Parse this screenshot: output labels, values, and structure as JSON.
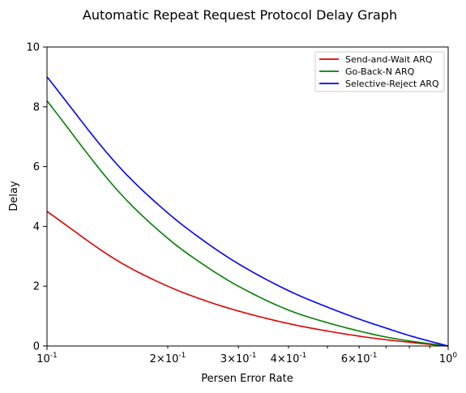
{
  "chart_data": {
    "type": "line",
    "title": "Automatic Repeat Request Protocol Delay Graph",
    "xlabel": "Persen Error Rate",
    "ylabel": "Delay",
    "xscale": "log",
    "xlim": [
      0.1,
      1.0
    ],
    "ylim": [
      0,
      10
    ],
    "grid": false,
    "legend_position": "top-right",
    "x_ticks": [
      {
        "value": 0.1,
        "label": "10^-1"
      },
      {
        "value": 0.2,
        "label": "2×10^-1"
      },
      {
        "value": 0.3,
        "label": "3×10^-1"
      },
      {
        "value": 0.4,
        "label": "4×10^-1"
      },
      {
        "value": 0.6,
        "label": "6×10^-1"
      },
      {
        "value": 1.0,
        "label": "10^0"
      }
    ],
    "y_ticks": [
      0,
      2,
      4,
      6,
      8,
      10
    ],
    "x": [
      0.1,
      0.15,
      0.2,
      0.25,
      0.3,
      0.4,
      0.5,
      0.6,
      0.7,
      0.8,
      0.9,
      1.0
    ],
    "series": [
      {
        "name": "Send-and-Wait ARQ",
        "color": "#e00000",
        "values": [
          4.5,
          2.85,
          2.0,
          1.5,
          1.17,
          0.75,
          0.5,
          0.33,
          0.21,
          0.125,
          0.055,
          0.0
        ]
      },
      {
        "name": "Go-Back-N ARQ",
        "color": "#008000",
        "values": [
          8.2,
          5.2,
          3.6,
          2.65,
          2.0,
          1.2,
          0.78,
          0.5,
          0.3,
          0.17,
          0.075,
          0.0
        ]
      },
      {
        "name": "Selective-Reject ARQ",
        "color": "#0000ff",
        "values": [
          9.0,
          6.05,
          4.45,
          3.45,
          2.75,
          1.85,
          1.3,
          0.9,
          0.6,
          0.35,
          0.16,
          0.0
        ]
      }
    ]
  }
}
